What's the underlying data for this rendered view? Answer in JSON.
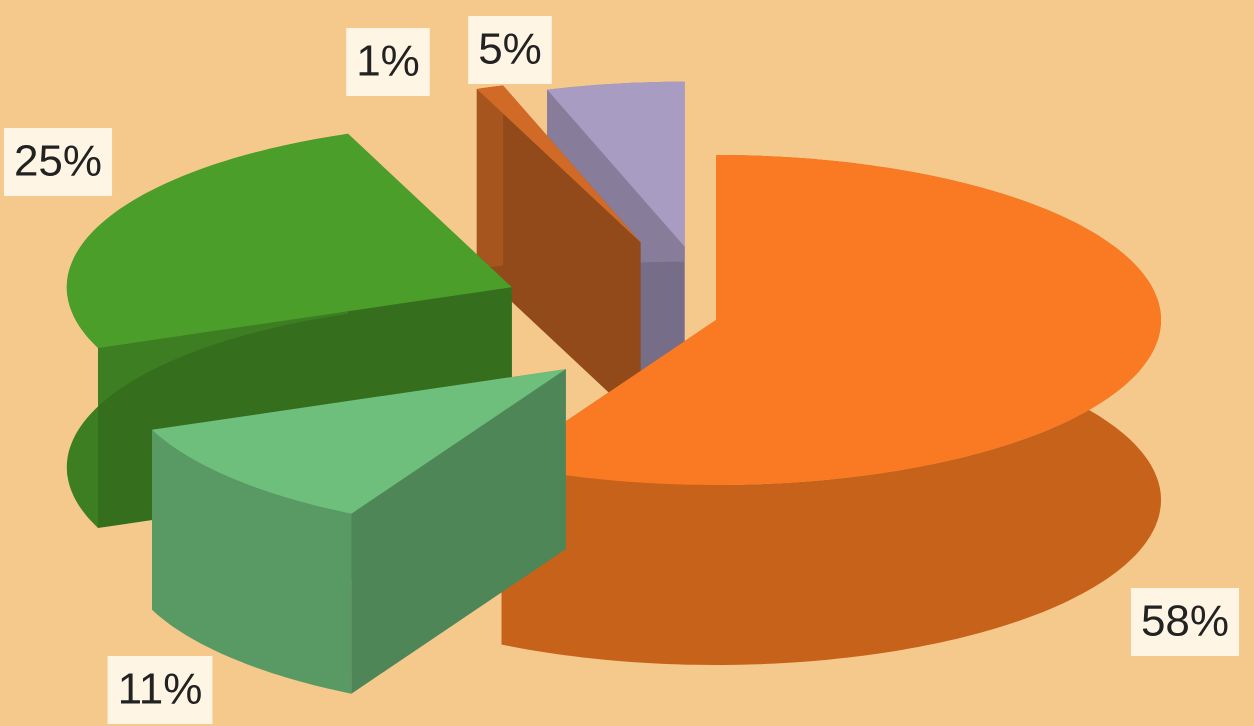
{
  "chart_data": {
    "type": "pie",
    "values": [
      58,
      11,
      25,
      1,
      5
    ],
    "value_labels": [
      "58%",
      "11%",
      "25%",
      "1%",
      "5%"
    ],
    "colors": [
      "#f97a22",
      "#6fbf7c",
      "#4c9e2a",
      "#d06a26",
      "#a99cc2"
    ]
  }
}
